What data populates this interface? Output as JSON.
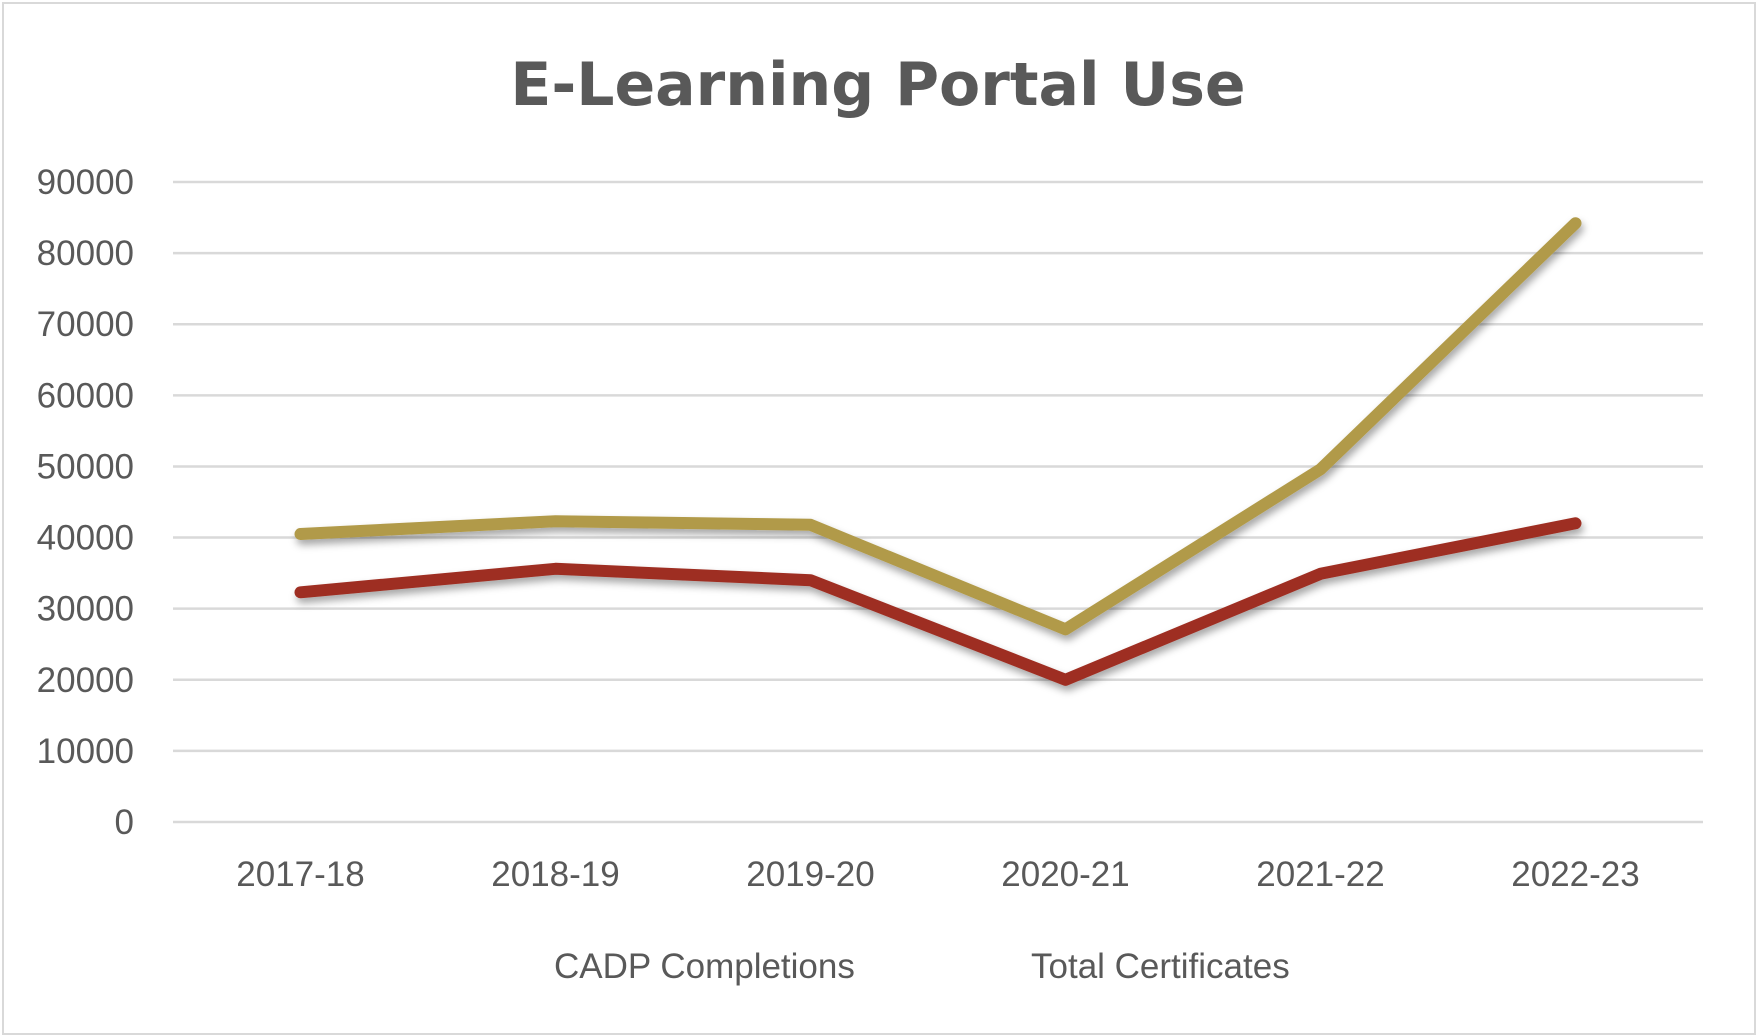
{
  "chart_data": {
    "type": "line",
    "title": "E-Learning Portal Use",
    "xlabel": "",
    "ylabel": "",
    "categories": [
      "2017-18",
      "2018-19",
      "2019-20",
      "2020-21",
      "2021-22",
      "2022-23"
    ],
    "ylim": [
      0,
      90000
    ],
    "yticks": [
      0,
      10000,
      20000,
      30000,
      40000,
      50000,
      60000,
      70000,
      80000,
      90000
    ],
    "grid": true,
    "legend_position": "bottom",
    "series": [
      {
        "name": "CADP Completions",
        "color": "#9e2f23",
        "values": [
          32300,
          35600,
          34000,
          20000,
          34900,
          42000
        ]
      },
      {
        "name": "Total Certificates",
        "color": "#b19a48",
        "values": [
          40500,
          42300,
          41800,
          27100,
          49600,
          84200
        ]
      }
    ]
  }
}
